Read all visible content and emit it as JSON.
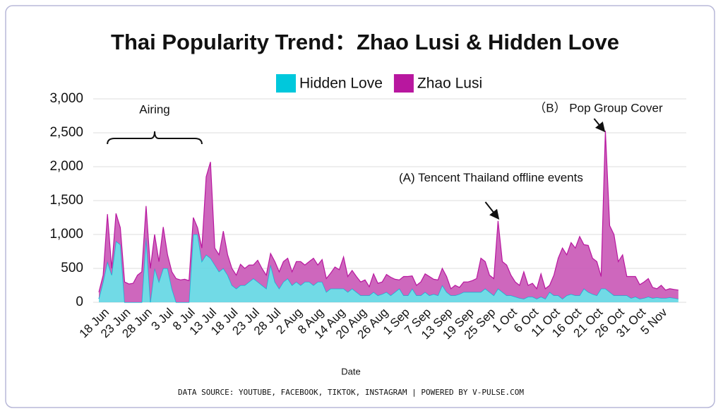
{
  "chart_data": {
    "type": "stacked_area",
    "title": "Thai Popularity Trend：Zhao Lusi & Hidden Love",
    "xlabel": "Date",
    "footer": "DATA SOURCE: YOUTUBE, FACEBOOK, TIKTOK, INSTAGRAM | POWERED BY V-PULSE.COM",
    "annotations": [
      {
        "text": "Airing",
        "from": 2,
        "to": 24
      },
      {
        "text": "(A) Tencent Thailand offline events",
        "at": 93
      },
      {
        "text": "（B） Pop Group Cover",
        "at": 118
      }
    ],
    "categories": [
      null,
      null,
      "18 Jun",
      null,
      null,
      null,
      null,
      "23 Jun",
      null,
      null,
      null,
      null,
      "28 Jun",
      null,
      null,
      null,
      null,
      "3 Jul",
      null,
      null,
      null,
      null,
      "8 Jul",
      null,
      null,
      null,
      null,
      "13 Jul",
      null,
      null,
      null,
      null,
      "18 Jul",
      null,
      null,
      null,
      null,
      "23 Jul",
      null,
      null,
      null,
      null,
      "28 Jul",
      null,
      null,
      null,
      null,
      "2 Aug",
      null,
      null,
      null,
      null,
      "8 Aug",
      null,
      null,
      null,
      null,
      "14 Aug",
      null,
      null,
      null,
      null,
      "20 Aug",
      null,
      null,
      null,
      null,
      "26 Aug",
      null,
      null,
      null,
      null,
      "1 Sep",
      null,
      null,
      null,
      null,
      "7 Sep",
      null,
      null,
      null,
      null,
      "13 Sep",
      null,
      null,
      null,
      null,
      "19 Sep",
      null,
      null,
      null,
      null,
      "25 Sep",
      null,
      null,
      null,
      null,
      "1 Oct",
      null,
      null,
      null,
      null,
      "6 Oct",
      null,
      null,
      null,
      null,
      "11 Oct",
      null,
      null,
      null,
      null,
      "16 Oct",
      null,
      null,
      null,
      null,
      "21 Oct",
      null,
      null,
      null,
      null,
      "26 Oct",
      null,
      null,
      null,
      null,
      "31 Oct",
      null,
      null,
      null,
      null,
      "5 Nov",
      null,
      null,
      null
    ],
    "series": [
      {
        "name": "Hidden Love",
        "color": "#00c8dc",
        "values": [
          50,
          300,
          600,
          400,
          900,
          850,
          0,
          0,
          0,
          0,
          0,
          950,
          0,
          500,
          300,
          500,
          500,
          200,
          0,
          0,
          0,
          0,
          1000,
          1000,
          600,
          700,
          650,
          550,
          450,
          500,
          400,
          250,
          200,
          250,
          250,
          300,
          350,
          300,
          250,
          200,
          550,
          300,
          200,
          300,
          350,
          250,
          300,
          250,
          300,
          300,
          250,
          300,
          300,
          150,
          200,
          200,
          200,
          200,
          150,
          200,
          150,
          100,
          100,
          100,
          150,
          100,
          120,
          150,
          100,
          150,
          200,
          100,
          100,
          200,
          100,
          100,
          150,
          100,
          120,
          100,
          250,
          150,
          100,
          100,
          120,
          150,
          150,
          150,
          150,
          150,
          200,
          150,
          100,
          200,
          150,
          100,
          100,
          80,
          60,
          50,
          80,
          80,
          50,
          80,
          50,
          150,
          100,
          100,
          50,
          100,
          120,
          100,
          100,
          200,
          150,
          120,
          100,
          200,
          200,
          150,
          100,
          100,
          100,
          100,
          60,
          80,
          50,
          60,
          80,
          60,
          70,
          60,
          60,
          70,
          60,
          50
        ]
      },
      {
        "name": "Zhao Lusi",
        "color": "#b8179f",
        "values": [
          100,
          100,
          700,
          100,
          410,
          250,
          300,
          270,
          280,
          400,
          450,
          470,
          500,
          500,
          300,
          610,
          200,
          250,
          350,
          330,
          340,
          320,
          250,
          100,
          200,
          1150,
          1420,
          250,
          250,
          550,
          300,
          250,
          200,
          310,
          250,
          250,
          200,
          320,
          250,
          200,
          170,
          300,
          250,
          300,
          300,
          200,
          300,
          350,
          250,
          300,
          400,
          250,
          330,
          200,
          230,
          320,
          280,
          470,
          230,
          270,
          230,
          200,
          230,
          130,
          270,
          180,
          180,
          260,
          270,
          190,
          130,
          280,
          280,
          190,
          150,
          200,
          270,
          280,
          220,
          230,
          250,
          230,
          100,
          150,
          100,
          150,
          150,
          170,
          200,
          500,
          400,
          250,
          250,
          1000,
          450,
          450,
          300,
          220,
          190,
          400,
          170,
          200,
          150,
          340,
          150,
          100,
          300,
          550,
          750,
          600,
          760,
          700,
          870,
          650,
          690,
          530,
          500,
          180,
          2330,
          980,
          900,
          500,
          600,
          280,
          320,
          300,
          210,
          240,
          270,
          160,
          130,
          190,
          120,
          130,
          130,
          130
        ]
      }
    ],
    "ylim": [
      0,
      3000
    ],
    "yticks": [
      0,
      500,
      {
        "value": 1000,
        "label": "1,000"
      },
      {
        "value": 1500,
        "label": "1,500"
      },
      {
        "value": 2000,
        "label": "2,000"
      },
      {
        "value": 2500,
        "label": "2,500"
      },
      {
        "value": 3000,
        "label": "3,000"
      }
    ],
    "grid": true,
    "legend": "top"
  }
}
